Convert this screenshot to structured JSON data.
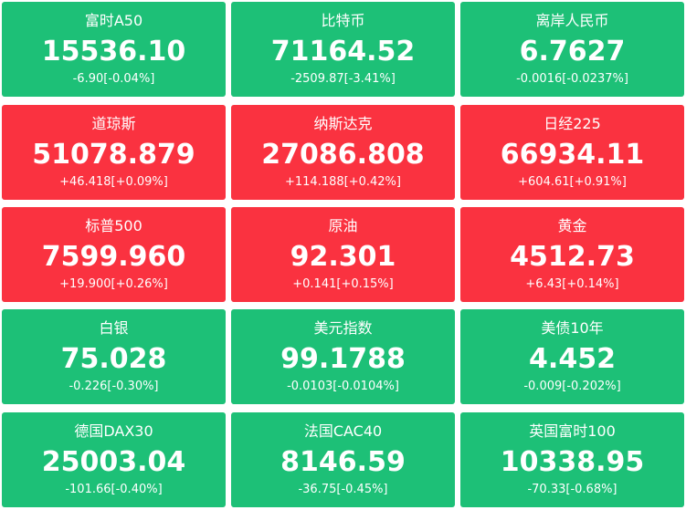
{
  "tiles": [
    {
      "name": "富时A50",
      "value": "15536.10",
      "change": "-6.90[-0.04%]",
      "color": "#1dc077"
    },
    {
      "name": "比特币",
      "value": "71164.52",
      "change": "-2509.87[-3.41%]",
      "color": "#1dc077"
    },
    {
      "name": "离岸人民币",
      "value": "6.7627",
      "change": "-0.0016[-0.0237%]",
      "color": "#1dc077"
    },
    {
      "name": "道琼斯",
      "value": "51078.879",
      "change": "+46.418[+0.09%]",
      "color": "#fa3240"
    },
    {
      "name": "纳斯达克",
      "value": "27086.808",
      "change": "+114.188[+0.42%]",
      "color": "#fa3240"
    },
    {
      "name": "日经225",
      "value": "66934.11",
      "change": "+604.61[+0.91%]",
      "color": "#fa3240"
    },
    {
      "name": "标普500",
      "value": "7599.960",
      "change": "+19.900[+0.26%]",
      "color": "#fa3240"
    },
    {
      "name": "原油",
      "value": "92.301",
      "change": "+0.141[+0.15%]",
      "color": "#fa3240"
    },
    {
      "name": "黄金",
      "value": "4512.73",
      "change": "+6.43[+0.14%]",
      "color": "#fa3240"
    },
    {
      "name": "白银",
      "value": "75.028",
      "change": "-0.226[-0.30%]",
      "color": "#1dc077"
    },
    {
      "name": "美元指数",
      "value": "99.1788",
      "change": "-0.0103[-0.0104%]",
      "color": "#1dc077"
    },
    {
      "name": "美债10年",
      "value": "4.452",
      "change": "-0.009[-0.202%]",
      "color": "#1dc077"
    },
    {
      "name": "德国DAX30",
      "value": "25003.04",
      "change": "-101.66[-0.40%]",
      "color": "#1dc077"
    },
    {
      "name": "法国CAC40",
      "value": "8146.59",
      "change": "-36.75[-0.45%]",
      "color": "#1dc077"
    },
    {
      "name": "英国富时100",
      "value": "10338.95",
      "change": "-70.33[-0.68%]",
      "color": "#1dc077"
    }
  ]
}
